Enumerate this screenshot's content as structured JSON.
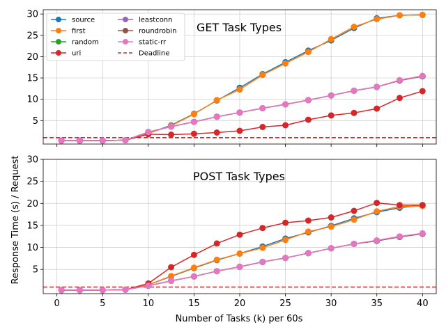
{
  "chart_data": {
    "type": "line",
    "xlabel": "Number of Tasks (k) per 60s",
    "ylabel": "Response Time (s) / Request",
    "x": [
      0.5,
      2.5,
      5,
      7.5,
      10,
      12.5,
      15,
      17.5,
      20,
      22.5,
      25,
      27.5,
      30,
      32.5,
      35,
      37.5,
      40
    ],
    "xlim": [
      -1.5,
      41.5
    ],
    "xticks": [
      0,
      5,
      10,
      15,
      20,
      25,
      30,
      35,
      40
    ],
    "grid": true,
    "legend": {
      "placement": "top-left (top panel)",
      "columns": 2,
      "entries": [
        "source",
        "first",
        "random",
        "uri",
        "leastconn",
        "roundrobin",
        "static-rr",
        "Deadline"
      ]
    },
    "colors": {
      "source": "#1f77b4",
      "first": "#ff7f0e",
      "random": "#2ca02c",
      "uri": "#d62728",
      "leastconn": "#9467bd",
      "roundrobin": "#8c564b",
      "static-rr": "#e377c2",
      "deadline": "#d62728",
      "grid": "#b0b0b0"
    },
    "deadline": 1,
    "panels": [
      {
        "title": "GET Task Types",
        "ylim": [
          -0.5,
          31
        ],
        "yticks": [
          5,
          10,
          15,
          20,
          25,
          30
        ],
        "series": [
          {
            "name": "source",
            "values": [
              0.3,
              0.3,
              0.3,
              0.4,
              2.0,
              3.9,
              6.6,
              9.7,
              12.7,
              15.9,
              18.7,
              21.4,
              23.8,
              26.7,
              29.0,
              29.7,
              29.8
            ]
          },
          {
            "name": "first",
            "values": [
              0.3,
              0.3,
              0.3,
              0.4,
              2.0,
              3.8,
              6.5,
              9.8,
              12.3,
              15.7,
              18.4,
              21.1,
              24.1,
              27.0,
              28.8,
              29.7,
              29.8
            ]
          },
          {
            "name": "random",
            "values": [
              0.3,
              0.3,
              0.3,
              0.4,
              2.3,
              3.6,
              4.7,
              5.9,
              6.9,
              7.9,
              8.8,
              9.8,
              10.9,
              12.0,
              12.9,
              14.4,
              15.4
            ]
          },
          {
            "name": "uri",
            "values": [
              0.3,
              0.3,
              0.3,
              0.4,
              1.8,
              1.7,
              1.9,
              2.2,
              2.6,
              3.5,
              3.9,
              5.2,
              6.2,
              6.8,
              7.8,
              10.3,
              11.9
            ]
          },
          {
            "name": "leastconn",
            "values": [
              0.3,
              0.3,
              0.3,
              0.4,
              2.3,
              3.6,
              4.7,
              5.9,
              6.9,
              7.9,
              8.8,
              9.8,
              10.9,
              12.0,
              12.9,
              14.4,
              15.4
            ]
          },
          {
            "name": "roundrobin",
            "values": [
              0.3,
              0.3,
              0.3,
              0.4,
              2.3,
              3.6,
              4.7,
              5.9,
              6.9,
              7.9,
              8.8,
              9.8,
              10.9,
              12.0,
              12.9,
              14.4,
              15.4
            ]
          },
          {
            "name": "static-rr",
            "values": [
              0.3,
              0.3,
              0.3,
              0.4,
              2.3,
              3.6,
              4.7,
              5.9,
              6.9,
              7.9,
              8.8,
              9.8,
              10.9,
              12.0,
              12.9,
              14.5,
              15.5
            ]
          }
        ]
      },
      {
        "title": "POST Task Types",
        "ylim": [
          -0.5,
          30
        ],
        "yticks": [
          5,
          10,
          15,
          20,
          25,
          30
        ],
        "series": [
          {
            "name": "source",
            "values": [
              0.3,
              0.3,
              0.3,
              0.4,
              1.5,
              3.4,
              5.3,
              7.1,
              8.6,
              10.2,
              12.0,
              13.4,
              14.9,
              16.6,
              18.0,
              19.0,
              19.6
            ]
          },
          {
            "name": "first",
            "values": [
              0.3,
              0.3,
              0.3,
              0.4,
              1.5,
              3.5,
              5.4,
              7.2,
              8.6,
              9.9,
              11.7,
              13.6,
              14.7,
              16.3,
              18.2,
              19.3,
              19.4
            ]
          },
          {
            "name": "random",
            "values": [
              0.3,
              0.3,
              0.3,
              0.4,
              1.3,
              2.4,
              3.4,
              4.6,
              5.6,
              6.7,
              7.6,
              8.7,
              9.8,
              10.8,
              11.5,
              12.4,
              13.1
            ]
          },
          {
            "name": "uri",
            "values": [
              0.3,
              0.3,
              0.3,
              0.4,
              1.8,
              5.5,
              8.3,
              10.9,
              12.9,
              14.4,
              15.6,
              16.1,
              16.8,
              18.3,
              20.1,
              19.6,
              19.6
            ]
          },
          {
            "name": "leastconn",
            "values": [
              0.3,
              0.3,
              0.3,
              0.4,
              1.3,
              2.4,
              3.4,
              4.6,
              5.6,
              6.7,
              7.6,
              8.7,
              9.8,
              10.8,
              11.5,
              12.4,
              13.1
            ]
          },
          {
            "name": "roundrobin",
            "values": [
              0.3,
              0.3,
              0.3,
              0.4,
              1.3,
              2.4,
              3.4,
              4.6,
              5.6,
              6.7,
              7.6,
              8.7,
              9.8,
              10.8,
              11.5,
              12.4,
              13.1
            ]
          },
          {
            "name": "static-rr",
            "values": [
              0.3,
              0.3,
              0.3,
              0.4,
              1.3,
              2.4,
              3.4,
              4.6,
              5.6,
              6.7,
              7.6,
              8.7,
              9.8,
              10.8,
              11.6,
              12.5,
              13.2
            ]
          }
        ]
      }
    ]
  }
}
